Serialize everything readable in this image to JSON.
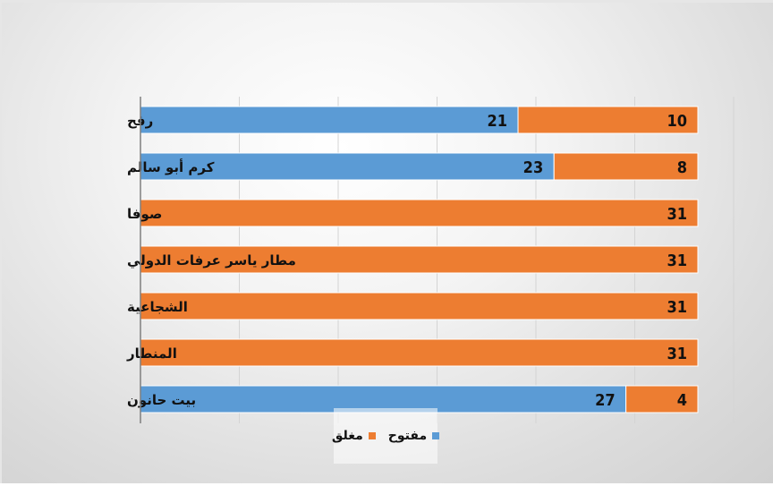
{
  "chart_data": {
    "type": "bar",
    "orientation": "horizontal",
    "stacked": true,
    "categories": [
      "رفح",
      "كرم أبو سالم",
      "صوفا",
      "مطار ياسر عرفات الدولي",
      "الشجاعية",
      "المنطار",
      "بيت حانون"
    ],
    "series": [
      {
        "name": "مفتوح",
        "color": "#5b9bd5",
        "values": [
          21,
          23,
          0,
          0,
          0,
          0,
          27
        ]
      },
      {
        "name": "مغلق",
        "color": "#ed7d31",
        "values": [
          10,
          8,
          31,
          31,
          31,
          31,
          4
        ]
      }
    ],
    "xlim": [
      0,
      31
    ],
    "grid": true,
    "legend_position": "bottom",
    "title": "",
    "xlabel": "",
    "ylabel": ""
  }
}
